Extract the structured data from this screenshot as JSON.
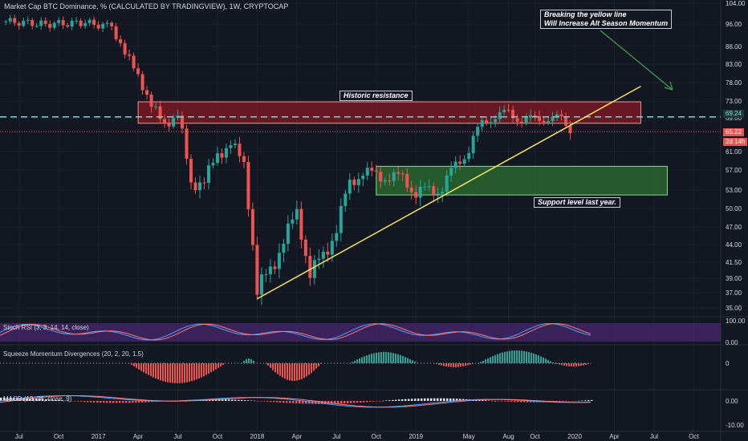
{
  "title": "Market Cap BTC Dominance, % (CALCULATED BY TRADINGVIEW), 1W, CRYPTOCAP",
  "colors": {
    "bg": "#131722",
    "grid": "#1e2230",
    "up": "#26a69a",
    "down": "#ef5350",
    "resistance": "#8b1a24",
    "support": "#2e7d32",
    "trendline": "#f5e663",
    "arrow": "#3aa845"
  },
  "annotations": {
    "breakout_line1": "Breaking the yellow line",
    "breakout_line2": "Will Increase Alt Season Momentum",
    "resistance": "Historic resistance",
    "support": "Support level last year."
  },
  "price_tags": {
    "level": "69.24",
    "last": "65.22",
    "countdown": "2d 14h"
  },
  "indicators": {
    "stoch": "Stoch RSI (3, 3, 14, 14, close)",
    "squeeze": "Squeeze Momentum Divergences (20, 2, 20, 1.5)",
    "macd": "MACD (12, 26, close, 9)"
  },
  "chart_data": [
    {
      "type": "candlestick",
      "title": "Market Cap BTC Dominance, % (CALCULATED BY TRADINGVIEW), 1W, CRYPTOCAP",
      "x_ticks": [
        "Jul",
        "Oct",
        "2017",
        "Apr",
        "Jul",
        "Oct",
        "2018",
        "Apr",
        "Jul",
        "Oct",
        "2019",
        "May",
        "Aug",
        "Oct",
        "2020",
        "Apr",
        "Jul",
        "Oct"
      ],
      "y_ticks": [
        104.0,
        96.0,
        88.0,
        83.0,
        78.0,
        73.0,
        69.0,
        65.0,
        61.0,
        57.0,
        53.0,
        50.0,
        47.0,
        44.0,
        41.5,
        39.0,
        37.0,
        35.0
      ],
      "ylim": [
        34,
        104
      ],
      "close_series": [
        {
          "date": "2016-06",
          "close": 97.0
        },
        {
          "date": "2016-09",
          "close": 96.0
        },
        {
          "date": "2016-12",
          "close": 96.5
        },
        {
          "date": "2017-02",
          "close": 95.0
        },
        {
          "date": "2017-03",
          "close": 86.0
        },
        {
          "date": "2017-04",
          "close": 80.0
        },
        {
          "date": "2017-05",
          "close": 72.0
        },
        {
          "date": "2017-06",
          "close": 67.0
        },
        {
          "date": "2017-07",
          "close": 70.0
        },
        {
          "date": "2017-08",
          "close": 54.0
        },
        {
          "date": "2017-09",
          "close": 55.0
        },
        {
          "date": "2017-10",
          "close": 60.0
        },
        {
          "date": "2017-11",
          "close": 63.0
        },
        {
          "date": "2017-12",
          "close": 58.0
        },
        {
          "date": "2018-01",
          "close": 37.5
        },
        {
          "date": "2018-02",
          "close": 40.0
        },
        {
          "date": "2018-03",
          "close": 45.0
        },
        {
          "date": "2018-04",
          "close": 49.0
        },
        {
          "date": "2018-05",
          "close": 40.0
        },
        {
          "date": "2018-06",
          "close": 42.0
        },
        {
          "date": "2018-07",
          "close": 47.0
        },
        {
          "date": "2018-08",
          "close": 54.0
        },
        {
          "date": "2018-09",
          "close": 57.0
        },
        {
          "date": "2018-10",
          "close": 55.5
        },
        {
          "date": "2018-11",
          "close": 56.0
        },
        {
          "date": "2018-12",
          "close": 55.0
        },
        {
          "date": "2019-01",
          "close": 53.0
        },
        {
          "date": "2019-02",
          "close": 52.5
        },
        {
          "date": "2019-03",
          "close": 54.0
        },
        {
          "date": "2019-04",
          "close": 57.5
        },
        {
          "date": "2019-05",
          "close": 62.0
        },
        {
          "date": "2019-06",
          "close": 67.0
        },
        {
          "date": "2019-07",
          "close": 70.0
        },
        {
          "date": "2019-08",
          "close": 69.5
        },
        {
          "date": "2019-09",
          "close": 69.0
        },
        {
          "date": "2019-10",
          "close": 68.0
        },
        {
          "date": "2019-11",
          "close": 69.5
        },
        {
          "date": "2019-12",
          "close": 68.0
        },
        {
          "date": "2020-01",
          "close": 65.22
        }
      ],
      "zones": [
        {
          "label": "Historic resistance",
          "from": "2017-04",
          "to": "2020-06",
          "low": 67.5,
          "high": 72.8
        },
        {
          "label": "Support level last year.",
          "from": "2018-10",
          "to": "2020-08",
          "low": 52.2,
          "high": 57.8
        }
      ],
      "trendline": {
        "from": {
          "date": "2018-01",
          "value": 36.2
        },
        "to": {
          "date": "2020-06",
          "value": 77.0
        }
      },
      "horizontal_level": 69.24,
      "last_value": 65.22
    },
    {
      "type": "line",
      "title": "Stoch RSI (3, 3, 14, 14, close)",
      "y_ticks": [
        100.0,
        0.0
      ],
      "ylim": [
        0,
        100
      ]
    },
    {
      "type": "bar",
      "title": "Squeeze Momentum Divergences (20, 2, 20, 1.5)",
      "y_ticks": [
        0
      ]
    },
    {
      "type": "line",
      "title": "MACD (12, 26, close, 9)",
      "y_ticks": [
        0.0,
        -10.0
      ]
    }
  ]
}
